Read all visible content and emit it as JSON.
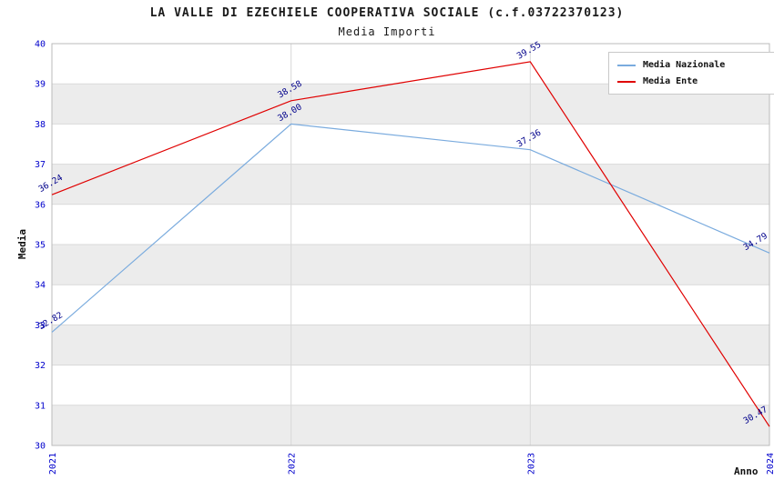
{
  "title": "LA VALLE DI EZECHIELE COOPERATIVA SOCIALE (c.f.03722370123)",
  "subtitle": "Media Importi",
  "chart_data": {
    "type": "line",
    "x": [
      "2021",
      "2022",
      "2023",
      "2024"
    ],
    "series": [
      {
        "name": "Media Nazionale",
        "color": "#7aabde",
        "values": [
          32.82,
          38.0,
          37.36,
          34.79
        ]
      },
      {
        "name": "Media Ente",
        "color": "#e00000",
        "values": [
          36.24,
          38.58,
          39.55,
          30.47
        ]
      }
    ],
    "xlabel": "Anno",
    "ylabel": "Media",
    "ylim": [
      30,
      40
    ],
    "ytick_step": 1,
    "yticks": [
      30,
      31,
      32,
      33,
      34,
      35,
      36,
      37,
      38,
      39,
      40
    ],
    "grid": true,
    "legend_position": "top-right",
    "colors": {
      "band": "#ececec",
      "grid": "#d9d9d9",
      "border": "#bbbbbb",
      "tick_label": "#0000cc",
      "value_label": "#00008b"
    }
  }
}
